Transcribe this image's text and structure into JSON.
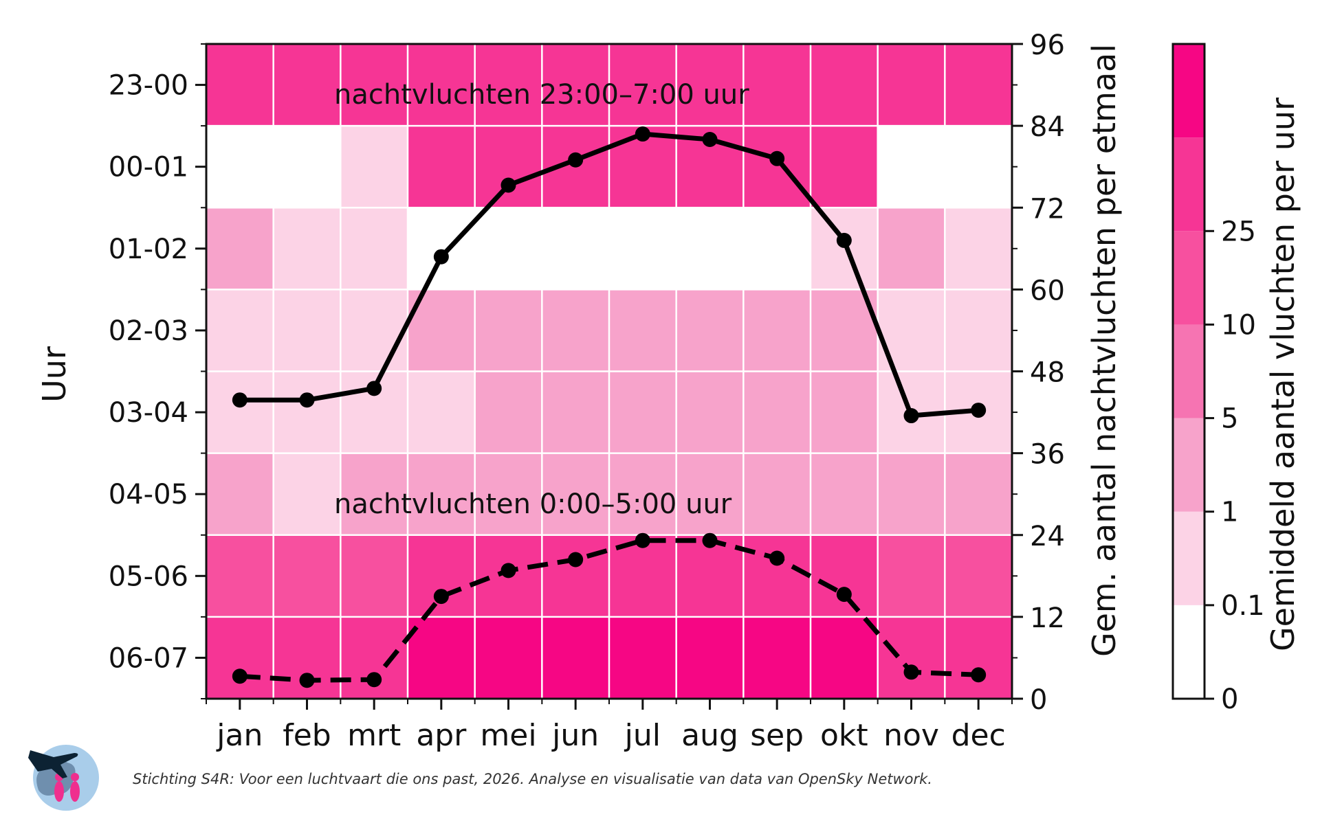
{
  "chart_data": {
    "type": "heatmap",
    "months": [
      "jan",
      "feb",
      "mrt",
      "apr",
      "mei",
      "jun",
      "jul",
      "aug",
      "sep",
      "okt",
      "nov",
      "dec"
    ],
    "hours": [
      "23-00",
      "00-01",
      "01-02",
      "02-03",
      "03-04",
      "04-05",
      "05-06",
      "06-07"
    ],
    "ylabel": "Uur",
    "heatmap_bins": [
      [
        5,
        5,
        5,
        5,
        5,
        5,
        5,
        5,
        5,
        5,
        5,
        5
      ],
      [
        0,
        0,
        1,
        5,
        5,
        5,
        5,
        5,
        5,
        5,
        0,
        0
      ],
      [
        2,
        1,
        1,
        0,
        0,
        0,
        0,
        0,
        0,
        1,
        2,
        1
      ],
      [
        1,
        1,
        1,
        2,
        2,
        2,
        2,
        2,
        2,
        2,
        1,
        1
      ],
      [
        1,
        1,
        1,
        1,
        2,
        2,
        2,
        2,
        2,
        2,
        1,
        1
      ],
      [
        2,
        1,
        2,
        2,
        2,
        2,
        2,
        2,
        2,
        2,
        2,
        2
      ],
      [
        4,
        4,
        4,
        5,
        5,
        5,
        5,
        5,
        5,
        5,
        4,
        4
      ],
      [
        5,
        5,
        5,
        6,
        6,
        6,
        6,
        6,
        6,
        6,
        5,
        5
      ]
    ],
    "line_series": [
      {
        "annotation": "nachtvluchten 23:00–7:00 uur",
        "style": "solid",
        "values": [
          43.8,
          43.8,
          45.5,
          64.8,
          75.3,
          79.0,
          82.8,
          82.0,
          79.2,
          67.2,
          41.5,
          42.3
        ]
      },
      {
        "annotation": "nachtvluchten 0:00–5:00 uur",
        "style": "dashed",
        "values": [
          3.3,
          2.7,
          2.8,
          15.0,
          18.8,
          20.4,
          23.2,
          23.2,
          20.6,
          15.3,
          3.9,
          3.5
        ]
      }
    ],
    "y2_label": "Gem. aantal nachtvluchten per etmaal",
    "y2_ticks": [
      0,
      12,
      24,
      36,
      48,
      60,
      72,
      84,
      96
    ],
    "y2_range": [
      0,
      96
    ],
    "colorbar": {
      "label": "Gemiddeld aantal vluchten per uur",
      "tick_labels": [
        "0",
        "0.1",
        "1",
        "5",
        "10",
        "25"
      ],
      "colors": [
        "#ffffff",
        "#fcd3e6",
        "#f7a3cb",
        "#f674b2",
        "#f7509f",
        "#f63595",
        "#f60684"
      ]
    },
    "grid": true
  },
  "source": "Stichting S4R: Voor een luchtvaart die ons past, 2026. Analyse en visualisatie van data van OpenSky Network.",
  "logo": {
    "icon": "airplane-trees-people-logo"
  }
}
